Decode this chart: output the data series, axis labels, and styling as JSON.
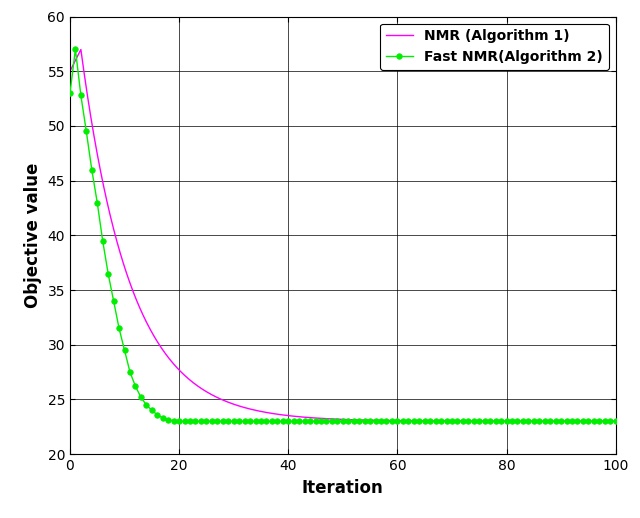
{
  "title": "",
  "xlabel": "Iteration",
  "ylabel": "Objective value",
  "xlim": [
    0,
    100
  ],
  "ylim": [
    20,
    60
  ],
  "xticks": [
    0,
    20,
    40,
    60,
    80,
    100
  ],
  "yticks": [
    20,
    25,
    30,
    35,
    40,
    45,
    50,
    55,
    60
  ],
  "legend": [
    "NMR (Algorithm 1)",
    "Fast NMR(Algorithm 2)"
  ],
  "nmr_color": "#ff00ff",
  "fast_nmr_color": "#00ee00",
  "background_color": "#ffffff",
  "converge_value": 23.0,
  "fast_nmr_vals": [
    53.0,
    57.0,
    52.8,
    49.5,
    46.0,
    43.0,
    39.5,
    36.5,
    34.0,
    31.5,
    29.5,
    27.5,
    26.2,
    25.2,
    24.5,
    24.0,
    23.6,
    23.3,
    23.15,
    23.05,
    23.0
  ],
  "nmr_peak_x": 2,
  "nmr_peak_y": 57.0,
  "nmr_start_y": 55.0,
  "nmr_k": 0.11,
  "nmr_converge": 23.0
}
